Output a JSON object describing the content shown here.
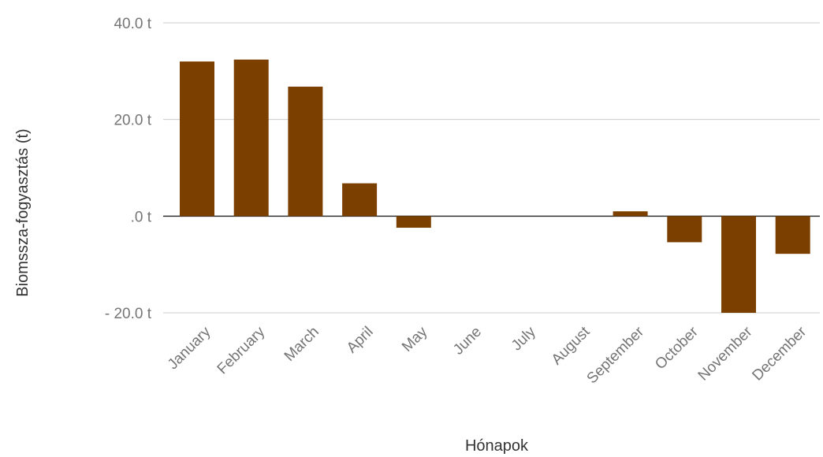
{
  "chart_data": {
    "type": "bar",
    "xlabel": "Hónapok",
    "ylabel": "Biomssza-fogyasztás (t)",
    "categories": [
      "January",
      "February",
      "March",
      "April",
      "May",
      "June",
      "July",
      "August",
      "September",
      "October",
      "November",
      "December"
    ],
    "values": [
      32.0,
      32.4,
      26.8,
      6.8,
      -2.4,
      0,
      0,
      0,
      1.0,
      -5.4,
      -20.0,
      -7.8
    ],
    "ylim": [
      -20,
      40
    ],
    "yticks": [
      {
        "value": 40,
        "label": "40.0  t"
      },
      {
        "value": 20,
        "label": "20.0  t"
      },
      {
        "value": 0,
        "label": ".0  t"
      },
      {
        "value": -20,
        "label": "-   20.0  t"
      }
    ],
    "grid": true,
    "bar_color": "#7b3f00",
    "grid_color": "#cccccc",
    "zero_line_color": "#333333"
  }
}
